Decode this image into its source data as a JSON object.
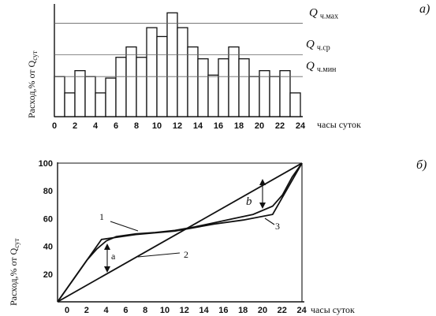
{
  "chart_data": [
    {
      "id": "a",
      "type": "bar",
      "panel_label": "а)",
      "ylabel": "Расход,% от Q",
      "ylabel_sub": "сут",
      "xlabel": "часы суток",
      "x_ticks": [
        "0",
        "2",
        "4",
        "6",
        "8",
        "10",
        "12",
        "14",
        "16",
        "18",
        "20",
        "22",
        "24"
      ],
      "hours": [
        0,
        1,
        2,
        3,
        4,
        5,
        6,
        7,
        8,
        9,
        10,
        11,
        12,
        13,
        14,
        15,
        16,
        17,
        18,
        19,
        20,
        21,
        22,
        23
      ],
      "values": [
        2.7,
        1.6,
        3.1,
        2.7,
        1.6,
        2.6,
        4.0,
        4.7,
        4.0,
        6.0,
        5.4,
        7.0,
        6.0,
        4.7,
        3.9,
        2.8,
        3.9,
        4.7,
        3.9,
        2.7,
        3.1,
        2.7,
        3.1,
        1.6
      ],
      "ylim": [
        0,
        7.6
      ],
      "ref_lines": [
        {
          "name": "max",
          "value": 6.3,
          "label_main": "Q",
          "label_sub": "ч.мах"
        },
        {
          "name": "avg",
          "value": 4.167,
          "label_main": "Q",
          "label_sub": "ч.ср"
        },
        {
          "name": "min",
          "value": 2.7,
          "label_main": "Q",
          "label_sub": "ч.мин"
        }
      ]
    },
    {
      "id": "b",
      "type": "line",
      "panel_label": "б)",
      "ylabel": "Расход,% от Q",
      "ylabel_sub": "сут",
      "xlabel": "часы суток",
      "x_ticks": [
        "0",
        "2",
        "4",
        "6",
        "8",
        "10",
        "12",
        "14",
        "16",
        "18",
        "20",
        "22",
        "24"
      ],
      "y_ticks": [
        "20",
        "40",
        "60",
        "80",
        "100"
      ],
      "xlim": [
        0,
        25
      ],
      "ylim": [
        0,
        105
      ],
      "series": [
        {
          "name": "1",
          "points": [
            [
              0,
              0
            ],
            [
              1,
              10
            ],
            [
              2,
              20
            ],
            [
              3,
              30
            ],
            [
              4,
              38
            ],
            [
              5,
              44
            ],
            [
              6,
              47
            ],
            [
              8,
              49
            ],
            [
              10,
              50
            ],
            [
              12,
              51.5
            ],
            [
              14,
              54
            ],
            [
              16,
              57
            ],
            [
              18,
              60
            ],
            [
              20,
              63
            ],
            [
              22,
              69
            ],
            [
              23,
              77
            ],
            [
              24,
              90
            ],
            [
              25,
              100
            ]
          ]
        },
        {
          "name": "2",
          "points": [
            [
              0,
              0
            ],
            [
              25,
              100
            ]
          ]
        },
        {
          "name": "3",
          "points": [
            [
              0,
              0
            ],
            [
              4.5,
              45
            ],
            [
              8,
              48.5
            ],
            [
              12,
              51
            ],
            [
              16,
              56
            ],
            [
              19,
              59
            ],
            [
              22,
              63
            ],
            [
              25,
              100
            ]
          ]
        }
      ],
      "curve_labels": [
        "1",
        "2",
        "3"
      ],
      "annotations": [
        "a",
        "b"
      ]
    }
  ]
}
